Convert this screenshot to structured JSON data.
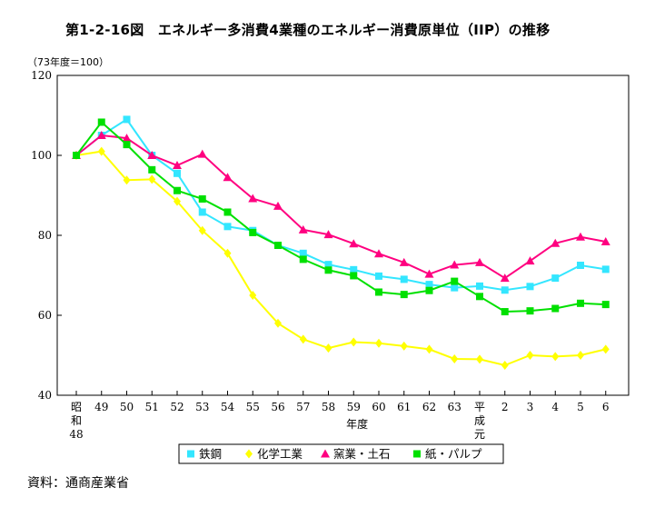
{
  "title": "第1-2-16図　エネルギー多消費4業種のエネルギー消費原単位（IIP）の推移",
  "unit_label": "（73年度＝100）",
  "source": "資料：通商産業省",
  "chart_data": {
    "type": "line",
    "title": "第1-2-16図　エネルギー多消費4業種のエネルギー消費原単位（IIP）の推移",
    "xlabel": "年度",
    "ylabel": "（73年度＝100）",
    "ylim": [
      40,
      120
    ],
    "yticks": [
      40,
      60,
      80,
      100,
      120
    ],
    "grid": false,
    "legend": "bottom",
    "categories": [
      "昭和48",
      "49",
      "50",
      "51",
      "52",
      "53",
      "54",
      "55",
      "56",
      "57",
      "58",
      "59",
      "60",
      "61",
      "62",
      "63",
      "平成元",
      "2",
      "3",
      "4",
      "5",
      "6"
    ],
    "series": [
      {
        "name": "鉄鋼",
        "color": "#33e6ff",
        "marker": "square",
        "values": [
          100,
          105,
          109,
          100,
          95.5,
          85.8,
          82.2,
          81.2,
          77.5,
          75.5,
          72.7,
          71.4,
          69.8,
          69,
          67.7,
          66.9,
          67.3,
          66.3,
          67.2,
          69.3,
          72.5,
          71.5
        ]
      },
      {
        "name": "化学工業",
        "color": "#ffff00",
        "marker": "diamond",
        "values": [
          100,
          101,
          93.8,
          94,
          88.5,
          81.2,
          75.5,
          65,
          58,
          54,
          51.8,
          53.3,
          53,
          52.3,
          51.5,
          49.1,
          49,
          47.5,
          50,
          49.7,
          50,
          51.5
        ]
      },
      {
        "name": "窯業・土石",
        "color": "#ff0080",
        "marker": "triangle",
        "values": [
          100,
          105,
          104.3,
          100,
          97.5,
          100.3,
          94.5,
          89.2,
          87.3,
          81.4,
          80.2,
          77.9,
          75.4,
          73.2,
          70.3,
          72.6,
          73.2,
          69.3,
          73.6,
          78,
          79.6,
          78.4
        ]
      },
      {
        "name": "紙・パルプ",
        "color": "#00e000",
        "marker": "square",
        "values": [
          100,
          108.3,
          102.7,
          96.4,
          91.2,
          89.1,
          85.8,
          80.7,
          77.5,
          74,
          71.3,
          69.9,
          65.8,
          65.2,
          66.2,
          68.5,
          64.7,
          60.9,
          61.1,
          61.7,
          63,
          62.7
        ]
      }
    ]
  }
}
